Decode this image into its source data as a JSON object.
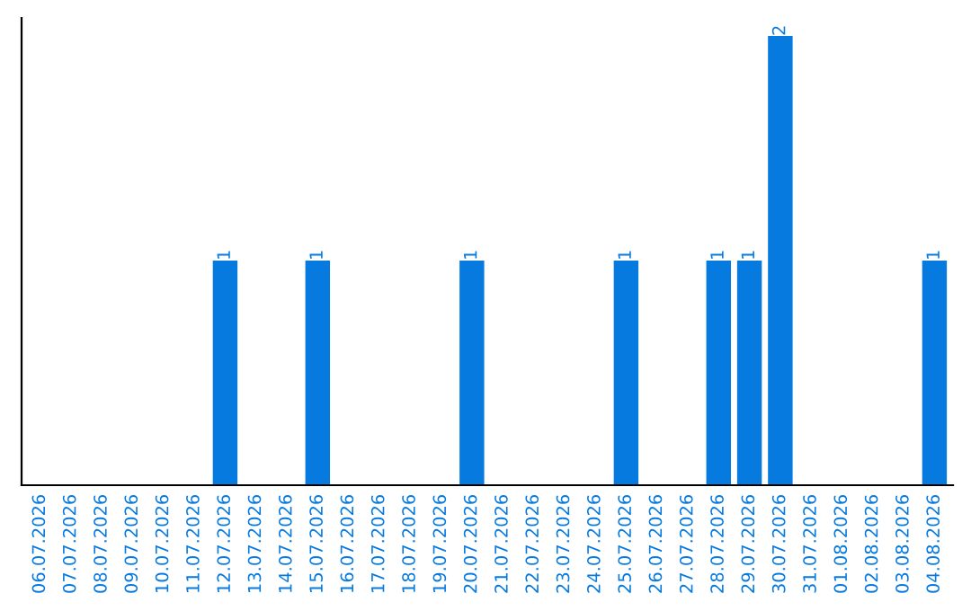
{
  "chart_data": {
    "type": "bar",
    "categories": [
      "06.07.2026",
      "07.07.2026",
      "08.07.2026",
      "09.07.2026",
      "10.07.2026",
      "11.07.2026",
      "12.07.2026",
      "13.07.2026",
      "14.07.2026",
      "15.07.2026",
      "16.07.2026",
      "17.07.2026",
      "18.07.2026",
      "19.07.2026",
      "20.07.2026",
      "21.07.2026",
      "22.07.2026",
      "23.07.2026",
      "24.07.2026",
      "25.07.2026",
      "26.07.2026",
      "27.07.2026",
      "28.07.2026",
      "29.07.2026",
      "30.07.2026",
      "31.07.2026",
      "01.08.2026",
      "02.08.2026",
      "03.08.2026",
      "04.08.2026"
    ],
    "values": [
      null,
      null,
      null,
      null,
      null,
      null,
      1,
      null,
      null,
      1,
      null,
      null,
      null,
      null,
      1,
      null,
      null,
      null,
      null,
      1,
      null,
      null,
      1,
      1,
      2,
      null,
      null,
      null,
      null,
      1
    ],
    "color": "#077ae0",
    "data_labels": true,
    "tick_labels": "x",
    "grid": false
  }
}
